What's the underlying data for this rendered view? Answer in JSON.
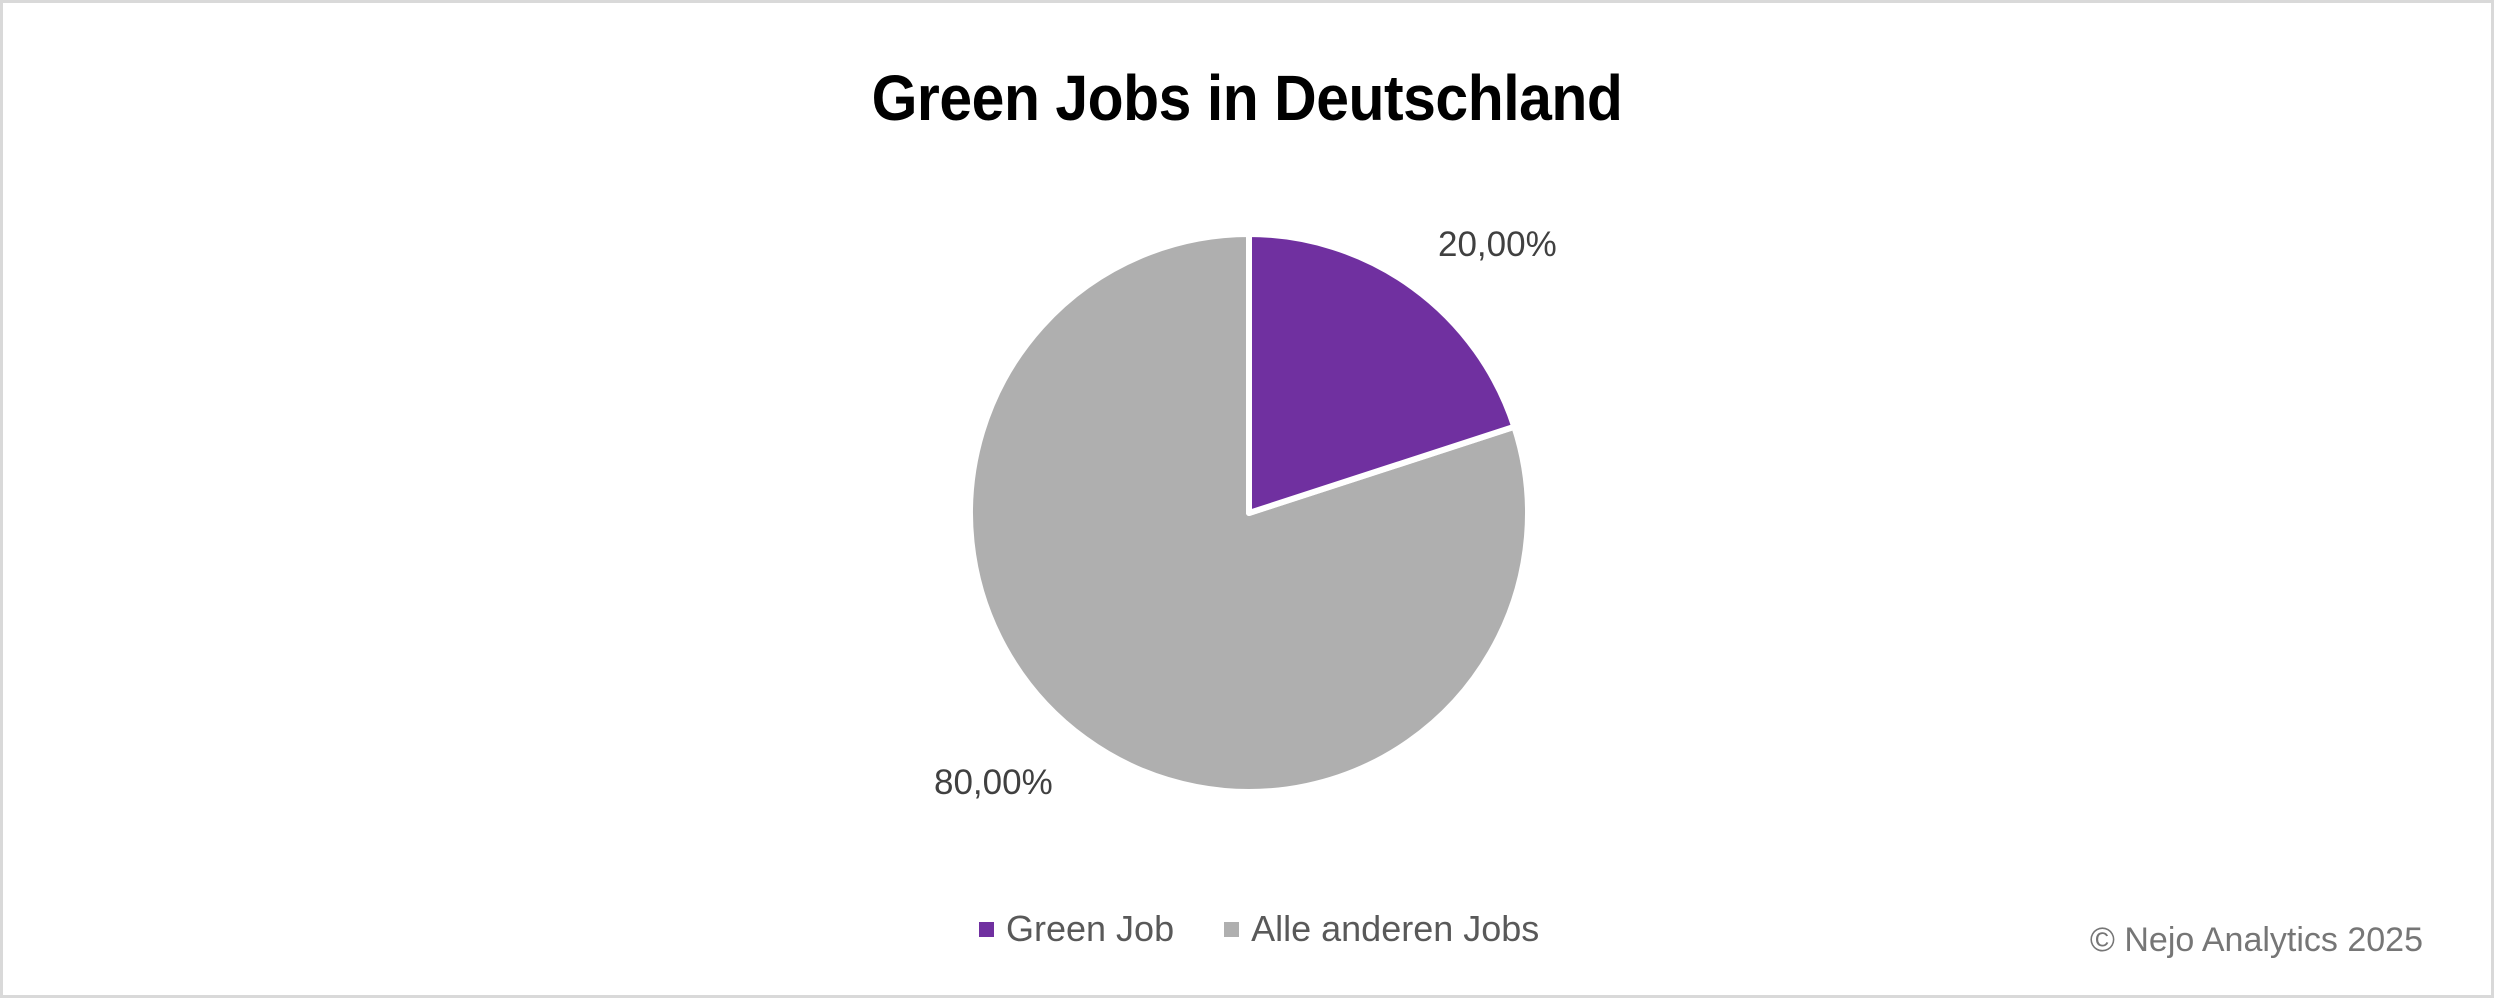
{
  "chart_data": {
    "type": "pie",
    "title": "Green Jobs in Deutschland",
    "categories": [
      "Green Job",
      "Alle anderen Jobs"
    ],
    "values": [
      20.0,
      80.0
    ],
    "data_labels": [
      "20,00%",
      "80,00%"
    ],
    "colors": [
      "#7030a0",
      "#afafaf"
    ],
    "start_angle_deg": 0,
    "direction": "clockwise",
    "legend_position": "bottom"
  },
  "chart": {
    "title": "Green Jobs in Deutschland",
    "labels": {
      "green": "20,00%",
      "other": "80,00%"
    },
    "legend": [
      {
        "label": "Green Job",
        "color": "#7030a0"
      },
      {
        "label": "Alle anderen Jobs",
        "color": "#afafaf"
      }
    ]
  },
  "footer": {
    "copyright": "© Nejo Analytics 2025"
  }
}
